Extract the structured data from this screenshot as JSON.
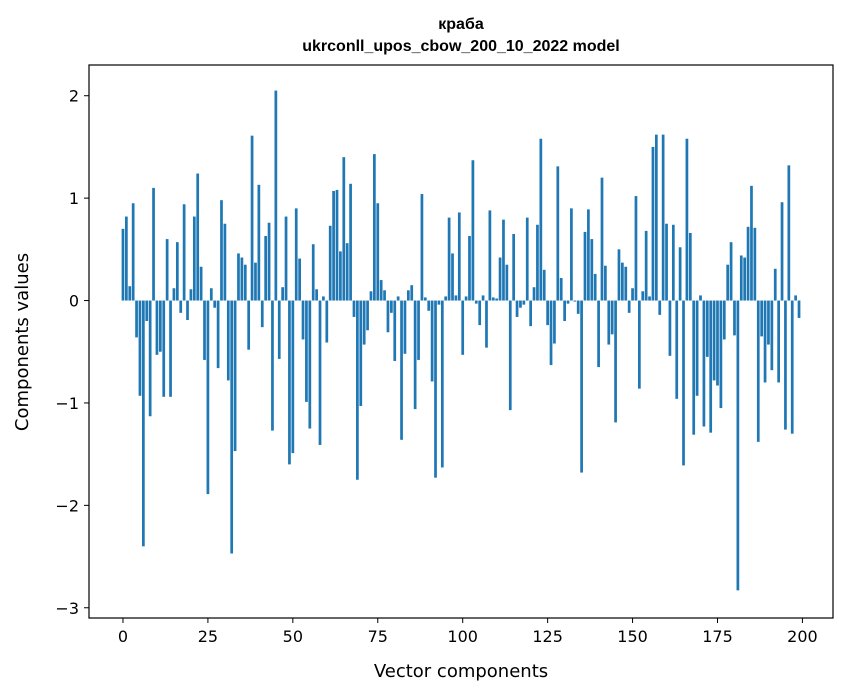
{
  "chart_data": {
    "type": "bar",
    "title": "краба",
    "subtitle": "ukrconll_upos_cbow_200_10_2022 model",
    "xlabel": "Vector components",
    "ylabel": "Components values",
    "xlim": [
      -10,
      209
    ],
    "ylim": [
      -3.1,
      2.3
    ],
    "xticks": [
      0,
      25,
      50,
      75,
      100,
      125,
      150,
      175,
      200
    ],
    "yticks": [
      2,
      1,
      0,
      -1,
      -2,
      -3
    ],
    "xtick_labels": [
      "0",
      "25",
      "50",
      "75",
      "100",
      "125",
      "150",
      "175",
      "200"
    ],
    "ytick_labels": [
      "2",
      "1",
      "0",
      "−1",
      "−2",
      "−3"
    ],
    "bar_color": "#1f77b4",
    "x": [
      0,
      1,
      2,
      3,
      4,
      5,
      6,
      7,
      8,
      9,
      10,
      11,
      12,
      13,
      14,
      15,
      16,
      17,
      18,
      19,
      20,
      21,
      22,
      23,
      24,
      25,
      26,
      27,
      28,
      29,
      30,
      31,
      32,
      33,
      34,
      35,
      36,
      37,
      38,
      39,
      40,
      41,
      42,
      43,
      44,
      45,
      46,
      47,
      48,
      49,
      50,
      51,
      52,
      53,
      54,
      55,
      56,
      57,
      58,
      59,
      60,
      61,
      62,
      63,
      64,
      65,
      66,
      67,
      68,
      69,
      70,
      71,
      72,
      73,
      74,
      75,
      76,
      77,
      78,
      79,
      80,
      81,
      82,
      83,
      84,
      85,
      86,
      87,
      88,
      89,
      90,
      91,
      92,
      93,
      94,
      95,
      96,
      97,
      98,
      99,
      100,
      101,
      102,
      103,
      104,
      105,
      106,
      107,
      108,
      109,
      110,
      111,
      112,
      113,
      114,
      115,
      116,
      117,
      118,
      119,
      120,
      121,
      122,
      123,
      124,
      125,
      126,
      127,
      128,
      129,
      130,
      131,
      132,
      133,
      134,
      135,
      136,
      137,
      138,
      139,
      140,
      141,
      142,
      143,
      144,
      145,
      146,
      147,
      148,
      149,
      150,
      151,
      152,
      153,
      154,
      155,
      156,
      157,
      158,
      159,
      160,
      161,
      162,
      163,
      164,
      165,
      166,
      167,
      168,
      169,
      170,
      171,
      172,
      173,
      174,
      175,
      176,
      177,
      178,
      179,
      180,
      181,
      182,
      183,
      184,
      185,
      186,
      187,
      188,
      189,
      190,
      191,
      192,
      193,
      194,
      195,
      196,
      197,
      198,
      199
    ],
    "values": [
      0.7,
      0.82,
      0.14,
      0.95,
      -0.36,
      -0.93,
      -2.4,
      -0.2,
      -1.13,
      1.1,
      -0.53,
      -0.5,
      -0.94,
      0.6,
      -0.94,
      0.12,
      0.57,
      -0.12,
      0.94,
      -0.19,
      0.11,
      0.82,
      1.24,
      0.33,
      -0.58,
      -1.89,
      0.12,
      -0.07,
      -0.66,
      0.98,
      0.75,
      -0.78,
      -2.47,
      -1.47,
      0.46,
      0.42,
      0.35,
      -0.48,
      1.61,
      0.37,
      1.13,
      -0.26,
      0.63,
      0.76,
      -1.27,
      2.05,
      -0.57,
      0.13,
      0.82,
      -1.6,
      -1.49,
      0.9,
      0.41,
      -0.38,
      -0.99,
      -1.25,
      0.55,
      0.11,
      -1.41,
      0.04,
      -0.41,
      0.73,
      1.07,
      1.08,
      0.48,
      1.4,
      0.56,
      1.14,
      -0.16,
      -1.75,
      -1.03,
      -0.43,
      -0.29,
      0.09,
      1.43,
      0.95,
      0.2,
      0.1,
      -0.31,
      -0.12,
      -0.59,
      0.04,
      -1.36,
      -0.52,
      0.1,
      0.15,
      -1.06,
      -0.58,
      1.04,
      0.03,
      -0.1,
      -0.79,
      -1.73,
      -0.04,
      -1.63,
      0.04,
      0.81,
      0.46,
      0.05,
      0.86,
      -0.53,
      0.04,
      0.63,
      1.37,
      -0.03,
      -0.24,
      0.05,
      -0.46,
      0.88,
      0.03,
      0.02,
      0.42,
      0.79,
      0.35,
      -1.07,
      0.65,
      -0.16,
      -0.07,
      -0.04,
      0.81,
      -0.25,
      0.13,
      0.74,
      1.58,
      0.3,
      -0.24,
      -0.63,
      -0.42,
      1.31,
      0.22,
      -0.2,
      -0.03,
      0.9,
      -0.01,
      -0.13,
      -1.68,
      0.67,
      0.89,
      0.6,
      0.26,
      -0.65,
      1.2,
      0.34,
      -0.43,
      -0.33,
      -1.19,
      0.5,
      0.37,
      0.33,
      -0.12,
      0.12,
      1.02,
      -0.86,
      0.09,
      0.68,
      0.04,
      1.5,
      1.62,
      -0.14,
      1.62,
      0.75,
      -0.54,
      0.74,
      -0.96,
      0.52,
      -1.61,
      1.58,
      0.66,
      -1.31,
      -0.93,
      0.05,
      -1.23,
      -0.55,
      -1.29,
      -0.78,
      -0.83,
      -1.05,
      -0.38,
      0.35,
      0.57,
      -0.34,
      -2.83,
      0.44,
      0.42,
      0.72,
      1.12,
      0.71,
      -1.38,
      -0.35,
      -0.8,
      -0.43,
      -0.68,
      0.31,
      -0.8,
      0.96,
      -1.26,
      1.32,
      -1.3,
      0.05,
      -0.17
    ]
  }
}
